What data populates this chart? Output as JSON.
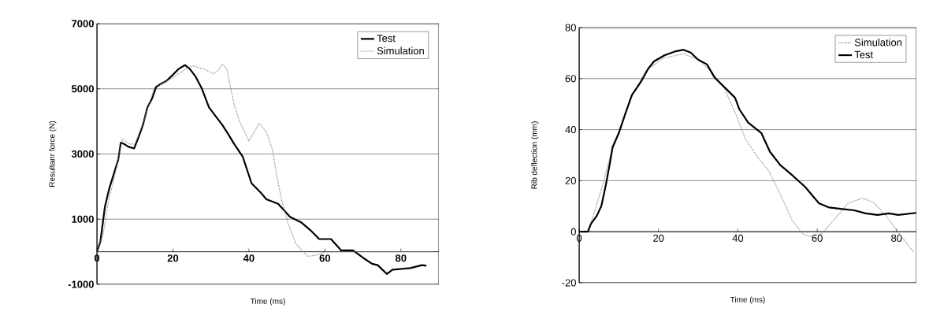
{
  "chart_data": [
    {
      "type": "line",
      "xlabel": "Time (ms)",
      "ylabel": "Resultanr force (N)",
      "xlim": [
        0,
        90
      ],
      "ylim": [
        -1000,
        7000
      ],
      "xticks": [
        0,
        20,
        40,
        60,
        80
      ],
      "yticks": [
        -1000,
        1000,
        3000,
        5000,
        7000
      ],
      "grid": "y",
      "legend": "top right",
      "series": [
        {
          "name": "Test",
          "color": "#000000",
          "line_style": "solid",
          "x": [
            0,
            0.9,
            2.1,
            3.2,
            4.4,
            5.6,
            6.3,
            7.1,
            8.3,
            9.8,
            11,
            12.1,
            13.3,
            14.5,
            15.6,
            16.8,
            18.3,
            19.9,
            21.4,
            23.2,
            24.5,
            26,
            27.6,
            29.5,
            31.5,
            33,
            34.5,
            36.1,
            38.4,
            40.7,
            43,
            44.6,
            47.7,
            50.8,
            53.9,
            56.2,
            58.5,
            61.6,
            64.3,
            67.4,
            70.1,
            72.4,
            73.9,
            76.3,
            77.8,
            82.5,
            85.5,
            86.7
          ],
          "values": [
            0,
            300,
            1380,
            1920,
            2370,
            2820,
            3350,
            3310,
            3220,
            3170,
            3530,
            3890,
            4430,
            4700,
            5060,
            5150,
            5240,
            5420,
            5600,
            5730,
            5600,
            5370,
            5010,
            4430,
            4120,
            3890,
            3620,
            3310,
            2910,
            2100,
            1830,
            1610,
            1470,
            1070,
            890,
            660,
            390,
            390,
            40,
            40,
            -190,
            -370,
            -410,
            -680,
            -550,
            -500,
            -410,
            -430
          ]
        },
        {
          "name": "Simulation",
          "color": "#808080",
          "line_style": "dotted",
          "x": [
            0,
            1.7,
            2.9,
            4.4,
            6,
            6.7,
            8.3,
            10,
            12,
            15.2,
            19.9,
            23.7,
            25.3,
            28.3,
            30.7,
            31.8,
            33,
            34.2,
            36.1,
            37.6,
            40,
            41.1,
            42.7,
            44.6,
            46.1,
            47.3,
            48.5,
            50.4,
            52.3,
            55.4,
            58,
            60,
            65,
            88
          ],
          "values": [
            0,
            570,
            1470,
            2190,
            3090,
            3460,
            3310,
            3300,
            3900,
            5060,
            5330,
            5640,
            5700,
            5600,
            5460,
            5550,
            5760,
            5600,
            4520,
            3980,
            3400,
            3620,
            3940,
            3670,
            3170,
            2370,
            1650,
            840,
            260,
            -140,
            -100,
            -10,
            0,
            0
          ]
        }
      ]
    },
    {
      "type": "line",
      "xlabel": "Time (ms)",
      "ylabel": "Rib deflection (mm)",
      "xlim": [
        0,
        85
      ],
      "ylim": [
        -20,
        80
      ],
      "xticks": [
        0,
        20,
        40,
        60,
        80
      ],
      "yticks": [
        -20,
        0,
        20,
        40,
        60,
        80
      ],
      "grid": "y",
      "legend": "top right",
      "series": [
        {
          "name": "Simulation",
          "color": "#808080",
          "line_style": "dotted",
          "x": [
            0,
            2.2,
            4.1,
            5.9,
            7.8,
            10,
            13,
            16.7,
            21.1,
            26.3,
            30,
            33.7,
            36.7,
            39.6,
            41.9,
            44.8,
            47.8,
            50.7,
            53.7,
            56.3,
            58.1,
            61.1,
            64.1,
            67.8,
            71.5,
            74.4,
            77.4,
            80.4,
            84.4
          ],
          "values": [
            0,
            0,
            8.9,
            18.1,
            29.6,
            38.7,
            52.5,
            62.8,
            68,
            69.7,
            67.4,
            62.2,
            55.9,
            45.6,
            36.4,
            29.6,
            23.8,
            14.7,
            4.4,
            -0.8,
            -1.9,
            -0.8,
            4.4,
            11.2,
            13.2,
            11.2,
            6.1,
            -0.2,
            -8.2
          ]
        },
        {
          "name": "Test",
          "color": "#000000",
          "line_style": "solid",
          "x": [
            0,
            2.2,
            3,
            4.4,
            5.6,
            6.7,
            7.8,
            8.4,
            10,
            11.5,
            13.3,
            15.6,
            17.4,
            18.9,
            21.5,
            24.1,
            26.3,
            28.1,
            30,
            32.2,
            34.1,
            36.7,
            39.3,
            40.4,
            42.6,
            45.9,
            48.1,
            50.7,
            53.3,
            57,
            60.4,
            63,
            66.3,
            69.3,
            72.2,
            75.2,
            78.1,
            80.4,
            85
          ],
          "values": [
            0,
            0,
            3.2,
            6.1,
            10.1,
            18.1,
            27.3,
            33,
            38.7,
            45.6,
            53.6,
            58.8,
            63.9,
            66.8,
            69.1,
            70.6,
            71.3,
            70.2,
            67.4,
            65.6,
            60.5,
            56.5,
            52.5,
            47.9,
            42.8,
            38.7,
            31.3,
            26.1,
            22.7,
            17.5,
            11.2,
            9.5,
            8.9,
            8.4,
            7.2,
            6.6,
            7.2,
            6.6,
            7.4
          ]
        }
      ]
    }
  ]
}
